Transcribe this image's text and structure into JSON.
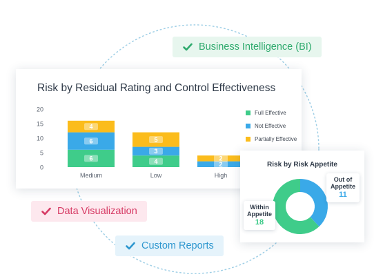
{
  "features": {
    "bi_label": "Business Intelligence (BI)",
    "dataviz_label": "Data Visualization",
    "reports_label": "Custom Reports"
  },
  "colors": {
    "full": "#3fcc8a",
    "not": "#3aa9e8",
    "partial": "#fbbc1c",
    "green_accent": "#2eaa6d",
    "pink_accent": "#d63a64",
    "blue_accent": "#2e97cf"
  },
  "bar_chart": {
    "title": "Risk by Residual Rating and Control Effectiveness",
    "chart_data": {
      "type": "bar",
      "stacked": true,
      "categories": [
        "Medium",
        "Low",
        "High"
      ],
      "series": [
        {
          "name": "Full Effective",
          "values": [
            6,
            4,
            0
          ]
        },
        {
          "name": "Not Effective",
          "values": [
            6,
            3,
            2
          ]
        },
        {
          "name": "Partially Effective",
          "values": [
            4,
            5,
            2
          ]
        }
      ],
      "y_ticks": [
        0,
        5,
        10,
        15,
        20
      ],
      "ylim": [
        0,
        20
      ],
      "legend_position": "right",
      "grid": false
    }
  },
  "donut_chart": {
    "title": "Risk by Risk Appetite",
    "chart_data": {
      "type": "pie",
      "donut": true,
      "slices": [
        {
          "label": "Within Appetite",
          "value": 18
        },
        {
          "label": "Out of Appetite",
          "value": 11
        }
      ]
    },
    "within": {
      "label": "Within Appetite",
      "value": "18"
    },
    "out": {
      "label": "Out of Appetite",
      "value": "11"
    }
  }
}
